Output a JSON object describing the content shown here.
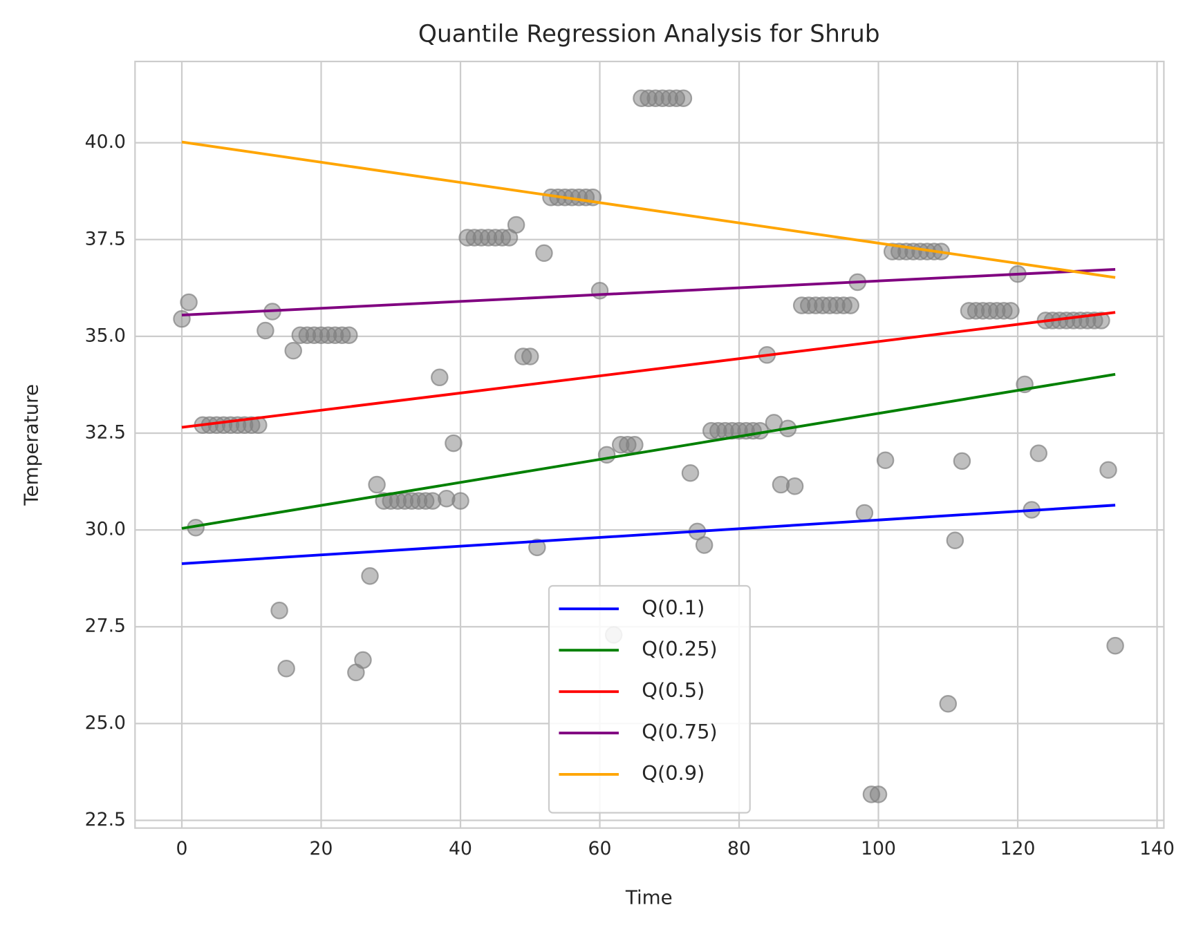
{
  "chart_data": {
    "type": "scatter",
    "title": "Quantile Regression Analysis for Shrub",
    "xlabel": "Time",
    "ylabel": "Temperature",
    "xlim": [
      -6.72,
      140.98
    ],
    "ylim": [
      22.3,
      42.1
    ],
    "xticks": [
      0,
      20,
      40,
      60,
      80,
      100,
      120,
      140
    ],
    "yticks": [
      22.5,
      {
        "value": 25,
        "label": "25.0"
      },
      27.5,
      {
        "value": 30,
        "label": "30.0"
      },
      32.5,
      {
        "value": 35,
        "label": "35.0"
      },
      37.5,
      {
        "value": 40,
        "label": "40.0"
      }
    ],
    "grid": true,
    "legend": "lower center",
    "points": {
      "color": "#808080",
      "x": [
        0,
        1,
        2,
        3,
        4,
        5,
        6,
        7,
        8,
        9,
        10,
        11,
        12,
        13,
        14,
        15,
        16,
        17,
        18,
        19,
        20,
        21,
        22,
        23,
        24,
        25,
        26,
        27,
        28,
        29,
        30,
        31,
        32,
        33,
        34,
        35,
        36,
        37,
        38,
        39,
        40,
        41,
        42,
        43,
        44,
        45,
        46,
        47,
        48,
        49,
        50,
        51,
        52,
        53,
        54,
        55,
        56,
        57,
        58,
        59,
        60,
        61,
        62,
        63,
        64,
        65,
        66,
        67,
        68,
        69,
        70,
        71,
        72,
        73,
        74,
        75,
        76,
        77,
        78,
        79,
        80,
        81,
        82,
        83,
        84,
        85,
        86,
        87,
        88,
        89,
        90,
        91,
        92,
        93,
        94,
        95,
        96,
        97,
        98,
        99,
        100,
        101,
        102,
        103,
        104,
        105,
        106,
        107,
        108,
        109,
        110,
        111,
        112,
        113,
        114,
        115,
        116,
        117,
        118,
        119,
        120,
        121,
        122,
        123,
        124,
        125,
        126,
        127,
        128,
        129,
        130,
        131,
        132,
        133,
        134
      ],
      "values": [
        35.45,
        35.88,
        30.06,
        32.71,
        32.71,
        32.71,
        32.71,
        32.71,
        32.71,
        32.71,
        32.71,
        32.71,
        35.15,
        35.64,
        27.92,
        26.42,
        34.63,
        35.03,
        35.03,
        35.03,
        35.03,
        35.03,
        35.03,
        35.03,
        35.03,
        26.32,
        26.64,
        28.81,
        31.17,
        30.75,
        30.75,
        30.75,
        30.75,
        30.75,
        30.75,
        30.75,
        30.75,
        33.94,
        30.81,
        32.24,
        30.75,
        37.55,
        37.55,
        37.55,
        37.55,
        37.55,
        37.55,
        37.55,
        37.88,
        34.48,
        34.48,
        29.55,
        37.15,
        38.59,
        38.59,
        38.59,
        38.59,
        38.59,
        38.59,
        38.59,
        36.18,
        31.94,
        27.29,
        32.2,
        32.2,
        32.2,
        41.15,
        41.15,
        41.15,
        41.15,
        41.15,
        41.15,
        41.15,
        31.47,
        29.96,
        29.61,
        32.56,
        32.56,
        32.56,
        32.56,
        32.56,
        32.56,
        32.56,
        32.56,
        34.52,
        32.77,
        31.17,
        32.62,
        31.13,
        35.8,
        35.8,
        35.8,
        35.8,
        35.8,
        35.8,
        35.8,
        35.8,
        36.4,
        30.44,
        23.17,
        23.17,
        31.8,
        37.19,
        37.19,
        37.19,
        37.19,
        37.19,
        37.19,
        37.19,
        37.19,
        25.51,
        29.73,
        31.78,
        35.66,
        35.66,
        35.66,
        35.66,
        35.66,
        35.66,
        35.66,
        36.61,
        33.76,
        30.52,
        31.98,
        35.41,
        35.41,
        35.41,
        35.41,
        35.41,
        35.41,
        35.41,
        35.41,
        35.41,
        31.55,
        27.01
      ]
    },
    "series": [
      {
        "name": "Q(0.1)",
        "color": "#0000ff",
        "x": [
          0,
          134
        ],
        "values": [
          29.13,
          30.64
        ]
      },
      {
        "name": "Q(0.25)",
        "color": "#008000",
        "x": [
          0,
          134
        ],
        "values": [
          30.04,
          34.02
        ]
      },
      {
        "name": "Q(0.5)",
        "color": "#ff0000",
        "x": [
          0,
          134
        ],
        "values": [
          32.65,
          35.62
        ]
      },
      {
        "name": "Q(0.75)",
        "color": "#800080",
        "x": [
          0,
          134
        ],
        "values": [
          35.55,
          36.73
        ]
      },
      {
        "name": "Q(0.9)",
        "color": "#ffa500",
        "x": [
          0,
          134
        ],
        "values": [
          40.02,
          36.52
        ]
      }
    ]
  }
}
